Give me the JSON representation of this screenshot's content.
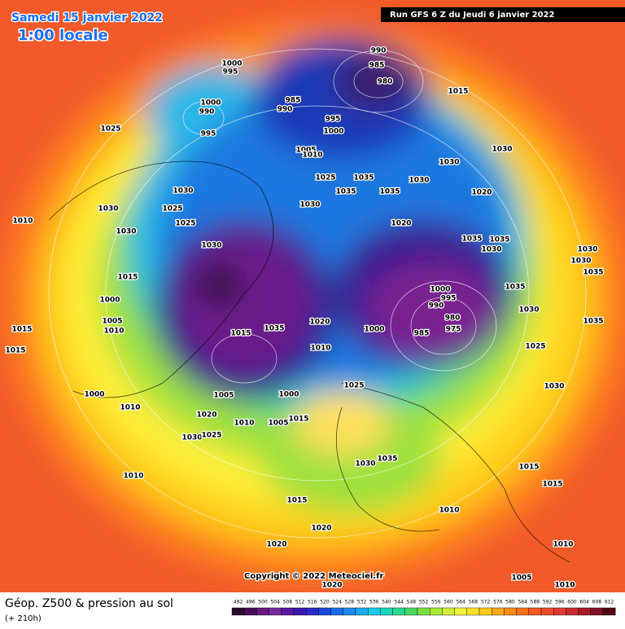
{
  "header": {
    "valid_date": "Samedi 15 janvier 2022",
    "local_time": "1:00 locale",
    "run": "Run GFS 6 Z du Jeudi 6 janvier 2022"
  },
  "footer": {
    "title": "Géop. Z500 & pression au sol",
    "lead": "(+ 210h)",
    "copyright": "Copyright © 2022 Meteociel.fr"
  },
  "legend": {
    "values": [
      492,
      496,
      500,
      504,
      508,
      512,
      516,
      520,
      524,
      528,
      532,
      536,
      540,
      544,
      548,
      552,
      556,
      560,
      564,
      568,
      572,
      576,
      580,
      584,
      588,
      592,
      596,
      600,
      604,
      608,
      612
    ]
  },
  "isobar_labels": [
    990,
    985,
    980,
    1000,
    995,
    1015,
    1000,
    990,
    995,
    985,
    990,
    995,
    1000,
    1025,
    1005,
    1010,
    1030,
    1030,
    1025,
    1035,
    1030,
    1035,
    1035,
    1020,
    1030,
    1025,
    1030,
    1030,
    1025,
    1030,
    1020,
    1010,
    1030,
    1035,
    1035,
    1030,
    1030,
    1030,
    1035,
    1015,
    1035,
    1000,
    1000,
    995,
    990,
    980,
    975,
    985,
    1030,
    1005,
    1010,
    1035,
    1020,
    1000,
    1015,
    1035,
    1015,
    1015,
    1010,
    1025,
    1030,
    1025,
    1000,
    1005,
    1000,
    1010,
    1020,
    1010,
    1005,
    1015,
    1030,
    1025,
    1030,
    1035,
    1015,
    1010,
    1015,
    1015,
    1010,
    1020,
    1020,
    1010,
    1005,
    1020,
    1010
  ]
}
